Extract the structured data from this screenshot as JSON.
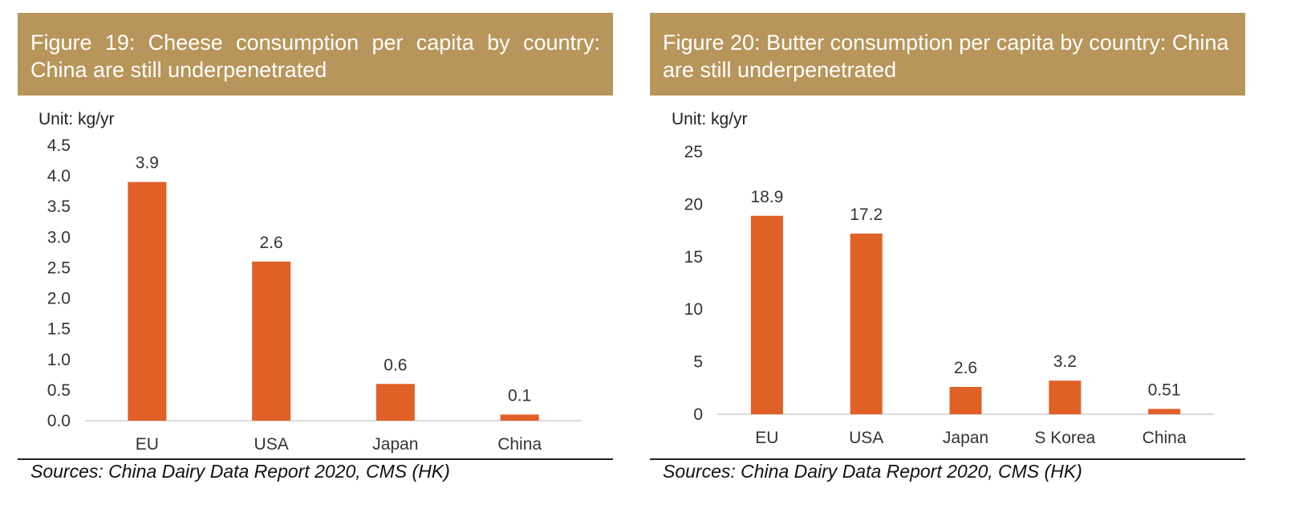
{
  "panels": [
    {
      "title": "Figure 19: Cheese consumption per capita by country: China are still underpenetrated",
      "unit": "Unit: kg/yr",
      "source": "Sources: China Dairy Data Report 2020, CMS (HK)"
    },
    {
      "title": "Figure 20: Butter consumption per capita by country: China are still underpenetrated",
      "unit": "Unit: kg/yr",
      "source": "Sources: China Dairy Data Report 2020, CMS (HK)"
    }
  ],
  "chart_data": [
    {
      "type": "bar",
      "title": "Figure 19: Cheese consumption per capita by country: China are still underpenetrated",
      "categories": [
        "EU",
        "USA",
        "Japan",
        "China"
      ],
      "values": [
        3.9,
        2.6,
        0.6,
        0.1
      ],
      "data_labels": [
        "3.9",
        "2.6",
        "0.6",
        "0.1"
      ],
      "ylabel": "Unit: kg/yr",
      "ylim": [
        0,
        4.5
      ],
      "yticks": [
        "0.0",
        "0.5",
        "1.0",
        "1.5",
        "2.0",
        "2.5",
        "3.0",
        "3.5",
        "4.0",
        "4.5"
      ],
      "color": "#e06026",
      "grid": false,
      "legend": "none"
    },
    {
      "type": "bar",
      "title": "Figure 20: Butter consumption per capita by country: China are still underpenetrated",
      "categories": [
        "EU",
        "USA",
        "Japan",
        "S Korea",
        "China"
      ],
      "values": [
        18.9,
        17.2,
        2.6,
        3.2,
        0.51
      ],
      "data_labels": [
        "18.9",
        "17.2",
        "2.6",
        "3.2",
        "0.51"
      ],
      "ylabel": "Unit: kg/yr",
      "ylim": [
        0,
        25
      ],
      "yticks": [
        "0",
        "5",
        "10",
        "15",
        "20",
        "25"
      ],
      "color": "#e06026",
      "grid": false,
      "legend": "none"
    }
  ]
}
